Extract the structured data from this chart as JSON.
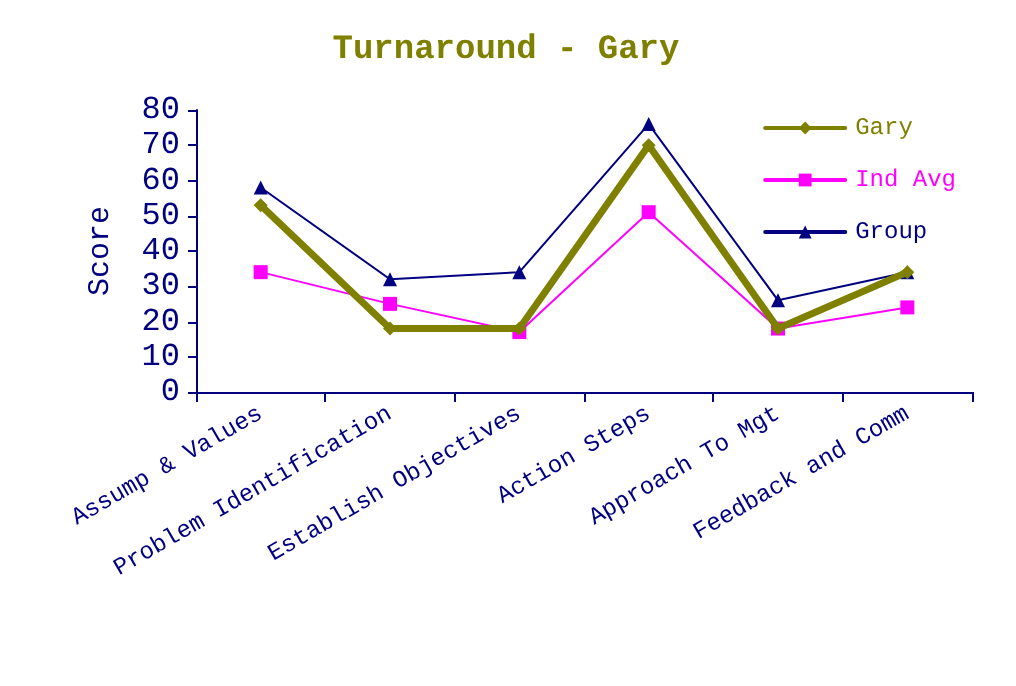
{
  "chart_data": {
    "type": "line",
    "title": "Turnaround - Gary",
    "ylabel": "Score",
    "categories": [
      "Assump & Values",
      "Problem Identification",
      "Establish Objectives",
      "Action Steps",
      "Approach To Mgt",
      "Feedback and Comm"
    ],
    "series": [
      {
        "name": "Gary",
        "color": "#808000",
        "marker": "diamond",
        "values": [
          53,
          18,
          18,
          70,
          18,
          34
        ]
      },
      {
        "name": "Ind Avg",
        "color": "#ff00ff",
        "marker": "square",
        "values": [
          34,
          25,
          17,
          51,
          18,
          24
        ]
      },
      {
        "name": "Group",
        "color": "#000080",
        "marker": "triangle",
        "values": [
          58,
          32,
          34,
          76,
          26,
          34
        ]
      }
    ],
    "ylim": [
      0,
      80
    ],
    "yticks": [
      0,
      10,
      20,
      30,
      40,
      50,
      60,
      70,
      80
    ],
    "grid": false,
    "legend": "top right",
    "line_style": "solid"
  }
}
